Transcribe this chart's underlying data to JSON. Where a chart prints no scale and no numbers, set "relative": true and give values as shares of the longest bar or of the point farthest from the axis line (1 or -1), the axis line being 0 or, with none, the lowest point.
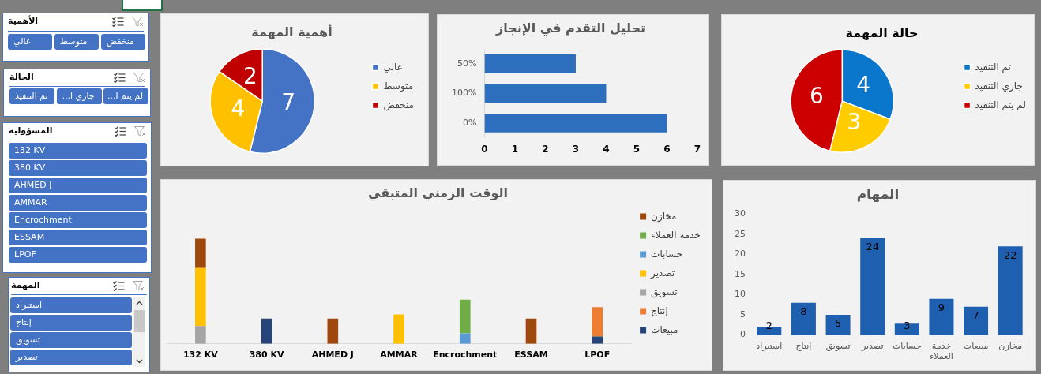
{
  "chart_data": [
    {
      "type": "other",
      "title": "الأهمية",
      "categories": [
        "عالي",
        "متوسط",
        "منخفض"
      ]
    },
    {
      "type": "other",
      "title": "الحالة",
      "categories": [
        "تم التنفيذ",
        "جاري ا...",
        "لم يتم ا..."
      ]
    },
    {
      "type": "other",
      "title": "المسؤولية",
      "categories": [
        "132 KV",
        "380 KV",
        "AHMED J",
        "AMMAR",
        "Encrochment",
        "ESSAM",
        "LPOF"
      ]
    },
    {
      "type": "other",
      "title": "المهمة",
      "categories": [
        "استيراد",
        "إنتاج",
        "تسويق",
        "تصدير"
      ]
    },
    {
      "type": "pie",
      "title": "أهمية المهمة",
      "categories": [
        "عالي",
        "متوسط",
        "منخفض"
      ],
      "values": [
        7,
        4,
        2
      ],
      "colors": [
        "#4472c4",
        "#ffc000",
        "#c00000"
      ],
      "data_labels": true,
      "legend": "right"
    },
    {
      "type": "bar",
      "orientation": "horizontal",
      "title": "تحليل التقدم في الإنجاز",
      "categories": [
        "50%",
        "100%",
        "0%"
      ],
      "values": [
        3,
        4,
        6
      ],
      "color": "#2e6fbd",
      "xlim": [
        0,
        7
      ],
      "xticks": [
        0,
        1,
        2,
        3,
        4,
        5,
        6,
        7
      ]
    },
    {
      "type": "pie",
      "title": "حالة المهمة",
      "categories": [
        "تم التنفيذ",
        "جاري التنفيذ",
        "لم يتم التنفيذ"
      ],
      "values": [
        4,
        3,
        6
      ],
      "colors": [
        "#0a77cc",
        "#ffcc00",
        "#cc0000"
      ],
      "data_labels": true,
      "legend": "right"
    },
    {
      "type": "bar",
      "stacked": true,
      "relative": true,
      "title": "الوقت الزمني المتبقي",
      "categories": [
        "132 KV",
        "380 KV",
        "AHMED J",
        "AMMAR",
        "Encrochment",
        "ESSAM",
        "LPOF"
      ],
      "legend": "right",
      "series": [
        {
          "name": "مبيعات",
          "color": "#264478",
          "values": [
            null,
            0.24,
            null,
            null,
            null,
            null,
            0.07
          ]
        },
        {
          "name": "إنتاج",
          "color": "#ed7d31",
          "values": [
            null,
            null,
            null,
            null,
            null,
            null,
            0.28
          ]
        },
        {
          "name": "تسويق",
          "color": "#a5a5a5",
          "values": [
            0.17,
            null,
            null,
            null,
            null,
            null,
            null
          ]
        },
        {
          "name": "تصدير",
          "color": "#ffc000",
          "values": [
            0.55,
            null,
            null,
            0.28,
            null,
            null,
            null
          ]
        },
        {
          "name": "حسابات",
          "color": "#5b9bd5",
          "values": [
            null,
            null,
            null,
            null,
            0.1,
            null,
            null
          ]
        },
        {
          "name": "خدمة العملاء",
          "color": "#70ad47",
          "values": [
            null,
            null,
            null,
            null,
            0.32,
            null,
            null
          ]
        },
        {
          "name": "مخازن",
          "color": "#9e480e",
          "values": [
            0.28,
            null,
            0.24,
            null,
            null,
            0.24,
            null
          ]
        }
      ]
    },
    {
      "type": "bar",
      "title": "المهام",
      "categories": [
        "استيراد",
        "إنتاج",
        "تسويق",
        "تصدير",
        "حسابات",
        "خدمة العملاء",
        "مبيعات",
        "مخازن"
      ],
      "values": [
        2,
        8,
        5,
        24,
        3,
        9,
        7,
        22
      ],
      "color": "#1f5fb0",
      "ylim": [
        0,
        30
      ],
      "yticks": [
        0,
        5,
        10,
        15,
        20,
        25,
        30
      ],
      "data_labels": true
    }
  ]
}
